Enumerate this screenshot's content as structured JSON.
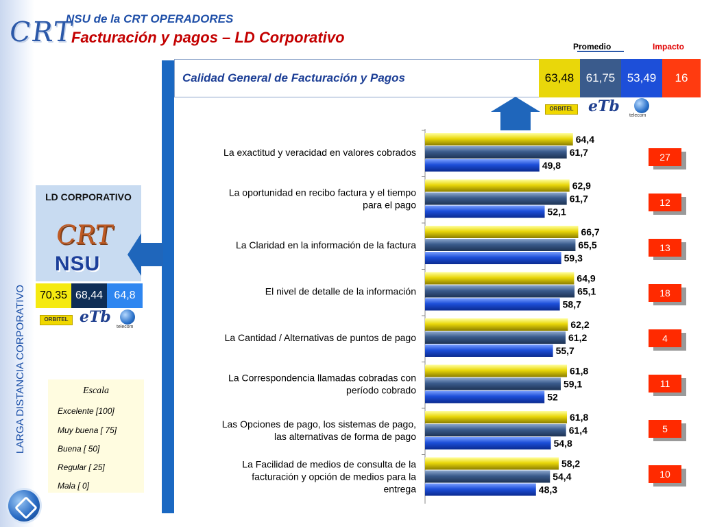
{
  "header": {
    "logo_text": "CRT",
    "title_line1": "NSU de la CRT  OPERADORES",
    "title_line2": "Facturación y pagos – LD Corporativo",
    "promedio_label": "Promedio",
    "impacto_label": "Impacto"
  },
  "side_label": "LARGA DISTANCIA CORPORATIVO",
  "summary": {
    "label": "Calidad General de Facturación y Pagos",
    "values": [
      "63,48",
      "61,75",
      "53,49"
    ],
    "impacto": "16"
  },
  "left_panel": {
    "title": "LD CORPORATIVO",
    "logo_crt": "CRT",
    "logo_nsu": "NSU",
    "values": [
      "70,35",
      "68,44",
      "64,8"
    ]
  },
  "logos": {
    "orbitel": "ORBITEL",
    "etb": "eTb",
    "telecom": "telecom"
  },
  "scale": {
    "title": "Escala",
    "items": [
      "Excelente [100]",
      "Muy buena [ 75]",
      "Buena     [ 50]",
      "Regular   [ 25]",
      "Mala      [  0]"
    ]
  },
  "impacto_values": [
    "27",
    "12",
    "13",
    "18",
    "4",
    "11",
    "5",
    "10"
  ],
  "colors": {
    "orbitel": "#e9d70a",
    "etb": "#3a5b8c",
    "telecom": "#1d4fd9",
    "impacto": "#ff2a00",
    "accent_blue": "#1a68c2"
  },
  "chart_data": {
    "type": "bar",
    "orientation": "horizontal",
    "categories": [
      "La exactitud y veracidad en valores cobrados",
      "La oportunidad en recibo factura  y el tiempo para el pago",
      "La Claridad en la información de la factura",
      "El nivel de detalle de la información",
      "La Cantidad / Alternativas de puntos de pago",
      "La Correspondencia llamadas cobradas con período cobrado",
      "Las Opciones de pago, los sistemas de pago, las alternativas de forma de pago",
      "La Facilidad de medios de consulta de la facturación y opción de medios para la entrega"
    ],
    "series": [
      {
        "values": [
          64.4,
          62.9,
          66.7,
          64.9,
          62.2,
          61.8,
          61.8,
          58.2
        ],
        "labels": [
          "64,4",
          "62,9",
          "66,7",
          "64,9",
          "62,2",
          "61,8",
          "61,8",
          "58,2"
        ],
        "color": "#e9d70a"
      },
      {
        "values": [
          61.7,
          61.7,
          65.5,
          65.1,
          61.2,
          59.1,
          61.4,
          54.4
        ],
        "labels": [
          "61,7",
          "61,7",
          "65,5",
          "65,1",
          "61,2",
          "59,1",
          "61,4",
          "54,4"
        ],
        "color": "#3a5b8c"
      },
      {
        "values": [
          49.8,
          52.1,
          59.3,
          58.7,
          55.7,
          52,
          54.8,
          48.3
        ],
        "labels": [
          "49,8",
          "52,1",
          "59,3",
          "58,7",
          "55,7",
          "52",
          "54,8",
          "48,3"
        ],
        "color": "#1d4fd9"
      }
    ]
  }
}
